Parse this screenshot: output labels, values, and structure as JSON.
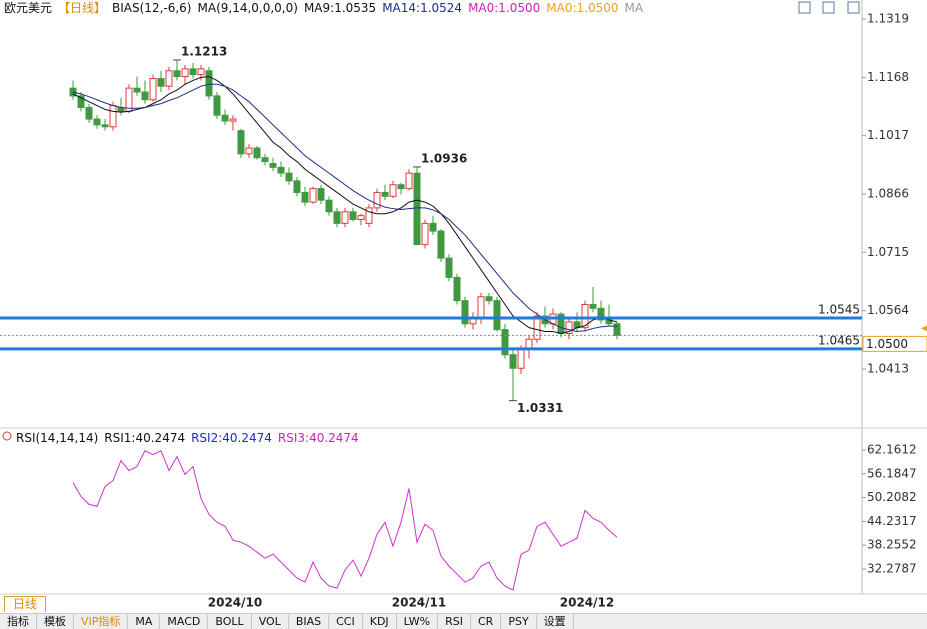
{
  "chart_data": [
    {
      "type": "candlestick",
      "header": [
        {
          "text": "欧元美元",
          "color": "#111111"
        },
        {
          "text": "【日线】",
          "color": "#e08a00"
        },
        {
          "text": "BIAS(12,-6,6)",
          "color": "#111111"
        },
        {
          "text": "MA(9,14,0,0,0,0)",
          "color": "#111111"
        },
        {
          "text": "MA9:1.0535",
          "color": "#111111"
        },
        {
          "text": "MA14:1.0524",
          "color": "#1f2d8a"
        },
        {
          "text": "MA0:1.0500",
          "color": "#d020c0"
        },
        {
          "text": "MA0:1.0500",
          "color": "#f0a020"
        },
        {
          "text": "MA",
          "color": "#999999"
        }
      ],
      "categories": [
        null,
        null,
        null,
        null,
        null,
        null,
        null,
        null,
        null,
        null,
        null,
        null,
        null,
        null,
        null,
        null,
        null,
        null,
        null,
        null,
        "2024/10",
        null,
        null,
        null,
        null,
        null,
        null,
        null,
        null,
        null,
        null,
        null,
        null,
        null,
        null,
        null,
        null,
        null,
        null,
        null,
        null,
        null,
        null,
        "2024/11",
        null,
        null,
        null,
        null,
        null,
        null,
        null,
        null,
        null,
        null,
        null,
        null,
        null,
        null,
        null,
        null,
        null,
        null,
        null,
        null,
        "2024/12",
        null,
        null,
        null,
        null
      ],
      "open": [
        1.114,
        1.112,
        1.109,
        1.106,
        1.1045,
        1.104,
        1.109,
        1.108,
        1.114,
        1.113,
        1.111,
        1.1165,
        1.1145,
        1.1185,
        1.117,
        1.119,
        1.1175,
        1.1185,
        1.112,
        1.107,
        1.1055,
        1.103,
        1.097,
        1.0985,
        1.096,
        1.0945,
        1.0935,
        1.092,
        1.09,
        1.087,
        1.0845,
        1.088,
        1.085,
        1.082,
        1.079,
        1.082,
        1.08,
        1.079,
        1.083,
        1.087,
        1.086,
        1.089,
        1.088,
        1.092,
        1.0735,
        1.079,
        1.077,
        1.07,
        1.065,
        1.059,
        1.053,
        1.0545,
        1.06,
        1.059,
        1.0515,
        1.045,
        1.0415,
        1.0465,
        1.049,
        1.055,
        1.053,
        1.0555,
        1.0505,
        1.0535,
        1.052,
        1.058,
        1.057,
        1.054,
        1.053
      ],
      "high": [
        1.116,
        1.113,
        1.11,
        1.107,
        1.106,
        1.1105,
        1.1115,
        1.115,
        1.117,
        1.116,
        1.1175,
        1.1185,
        1.1195,
        1.1213,
        1.12,
        1.1205,
        1.12,
        1.1195,
        1.113,
        1.1085,
        1.107,
        1.1035,
        1.0995,
        1.099,
        1.097,
        1.096,
        1.095,
        1.0935,
        1.091,
        1.0885,
        1.0885,
        1.089,
        1.086,
        1.083,
        1.083,
        1.083,
        1.0815,
        1.084,
        1.088,
        1.089,
        1.09,
        1.0895,
        1.093,
        1.0936,
        1.08,
        1.081,
        1.0775,
        1.071,
        1.066,
        1.06,
        1.056,
        1.061,
        1.061,
        1.06,
        1.053,
        1.0465,
        1.0475,
        1.05,
        1.056,
        1.0575,
        1.057,
        1.056,
        1.0545,
        1.056,
        1.059,
        1.0625,
        1.059,
        1.058,
        1.0535
      ],
      "low": [
        1.111,
        1.108,
        1.105,
        1.1035,
        1.103,
        1.103,
        1.107,
        1.1075,
        1.112,
        1.11,
        1.1105,
        1.113,
        1.1135,
        1.116,
        1.115,
        1.1165,
        1.116,
        1.111,
        1.106,
        1.1045,
        1.103,
        1.096,
        1.096,
        1.0955,
        1.094,
        1.0925,
        1.091,
        1.089,
        1.086,
        1.0835,
        1.084,
        1.084,
        1.081,
        1.078,
        1.078,
        1.0795,
        1.0785,
        1.078,
        1.082,
        1.085,
        1.0855,
        1.0865,
        1.0875,
        1.074,
        1.0725,
        1.076,
        1.069,
        1.064,
        1.058,
        1.052,
        1.0515,
        1.053,
        1.058,
        1.051,
        1.044,
        1.0331,
        1.04,
        1.044,
        1.048,
        1.052,
        1.0515,
        1.0495,
        1.049,
        1.051,
        1.051,
        1.056,
        1.053,
        1.0525,
        1.049
      ],
      "close": [
        1.112,
        1.109,
        1.106,
        1.1045,
        1.104,
        1.1095,
        1.108,
        1.114,
        1.113,
        1.111,
        1.1165,
        1.1145,
        1.1185,
        1.117,
        1.119,
        1.1175,
        1.119,
        1.112,
        1.107,
        1.1055,
        1.106,
        1.097,
        1.0985,
        1.096,
        1.095,
        1.0935,
        1.092,
        1.09,
        1.087,
        1.0845,
        1.088,
        1.085,
        1.082,
        1.079,
        1.082,
        1.08,
        1.081,
        1.083,
        1.087,
        1.086,
        1.089,
        1.088,
        1.092,
        1.0735,
        1.079,
        1.077,
        1.07,
        1.065,
        1.059,
        1.053,
        1.0545,
        1.06,
        1.059,
        1.0515,
        1.045,
        1.0415,
        1.0465,
        1.049,
        1.055,
        1.053,
        1.0555,
        1.0505,
        1.0535,
        1.052,
        1.058,
        1.057,
        1.054,
        1.053,
        1.05
      ],
      "up_color": "#e0393e",
      "down_color": "#3f9a3f",
      "series": [
        {
          "name": "MA9",
          "color": "#111111",
          "values": [
            1.1125,
            1.1115,
            1.1105,
            1.1095,
            1.1085,
            1.108,
            1.1078,
            1.108,
            1.1085,
            1.109,
            1.11,
            1.111,
            1.1125,
            1.1135,
            1.115,
            1.116,
            1.1168,
            1.117,
            1.116,
            1.1145,
            1.1125,
            1.11,
            1.1075,
            1.105,
            1.1025,
            1.1,
            1.0985,
            1.0965,
            1.095,
            1.093,
            1.0915,
            1.09,
            1.0885,
            1.087,
            1.0855,
            1.084,
            1.083,
            1.082,
            1.0815,
            1.0815,
            1.082,
            1.083,
            1.0845,
            1.085,
            1.0845,
            1.0835,
            1.0815,
            1.079,
            1.076,
            1.073,
            1.07,
            1.067,
            1.064,
            1.061,
            1.058,
            1.055,
            1.0535,
            1.052,
            1.0515,
            1.051,
            1.051,
            1.0505,
            1.051,
            1.052,
            1.0525,
            1.054,
            1.0545,
            1.054,
            1.0535
          ]
        },
        {
          "name": "MA14",
          "color": "#1f2d8a",
          "values": [
            1.113,
            1.1125,
            1.1118,
            1.111,
            1.1102,
            1.1095,
            1.109,
            1.1088,
            1.1088,
            1.109,
            1.1095,
            1.11,
            1.1108,
            1.1115,
            1.1125,
            1.1135,
            1.1145,
            1.115,
            1.115,
            1.1145,
            1.1135,
            1.112,
            1.1105,
            1.1085,
            1.1065,
            1.1045,
            1.1025,
            1.1005,
            1.0985,
            1.0965,
            1.095,
            1.0935,
            1.092,
            1.0905,
            1.089,
            1.0875,
            1.0862,
            1.085,
            1.084,
            1.0832,
            1.0828,
            1.0826,
            1.0828,
            1.083,
            1.083,
            1.0825,
            1.0815,
            1.08,
            1.078,
            1.076,
            1.0735,
            1.071,
            1.0685,
            1.066,
            1.0635,
            1.061,
            1.059,
            1.057,
            1.0555,
            1.054,
            1.053,
            1.052,
            1.0515,
            1.051,
            1.0512,
            1.0518,
            1.0522,
            1.0524,
            1.0524
          ]
        }
      ],
      "ylim": [
        1.0268,
        1.1332
      ],
      "yticks": [
        1.1319,
        1.1168,
        1.1017,
        1.0866,
        1.0715,
        1.0564,
        1.0413
      ],
      "levels": [
        1.0545,
        1.0465
      ],
      "level_color": "#1e7be0",
      "current": {
        "value": 1.05,
        "label": "1.0500"
      },
      "current_color": "#f0a020",
      "high_labels": [
        1.1213,
        1.0936
      ],
      "low_labels": [
        1.0331
      ]
    },
    {
      "type": "line",
      "header": [
        {
          "text": "RSI(14,14,14)",
          "color": "#111111"
        },
        {
          "text": "RSI1:40.2474",
          "color": "#111111"
        },
        {
          "text": "RSI2:40.2474",
          "color": "#1f2dc0"
        },
        {
          "text": "RSI3:40.2474",
          "color": "#d020c0"
        }
      ],
      "series": [
        {
          "name": "RSI",
          "color": "#cc33cc",
          "values": [
            54,
            50.5,
            48.5,
            48,
            53,
            54.5,
            59.5,
            57,
            58,
            62,
            61,
            62,
            57,
            60.5,
            56,
            58,
            50,
            46,
            44,
            43,
            39.5,
            39,
            38,
            36.5,
            35,
            36,
            34,
            32,
            30,
            29,
            34,
            30,
            28,
            27.5,
            32,
            34.5,
            30.5,
            35,
            41,
            44,
            38,
            44,
            52.5,
            39,
            43.5,
            42,
            35.5,
            33,
            31,
            29,
            30,
            33,
            34,
            30,
            28,
            27,
            36,
            37,
            43,
            44,
            41,
            38,
            39,
            40,
            47,
            45,
            44,
            42,
            40.2474
          ]
        }
      ],
      "ylim": [
        26.5,
        63.42
      ],
      "yticks": [
        62.1612,
        56.1847,
        50.2082,
        44.2317,
        38.2552,
        32.2787
      ]
    }
  ],
  "toolbar": {
    "period": "日线",
    "tabs": [
      "指标",
      "模板",
      "VIP指标",
      "MA",
      "MACD",
      "BOLL",
      "VOL",
      "BIAS",
      "CCI",
      "KDJ",
      "LW%",
      "RSI",
      "CR",
      "PSY",
      "设置"
    ]
  }
}
